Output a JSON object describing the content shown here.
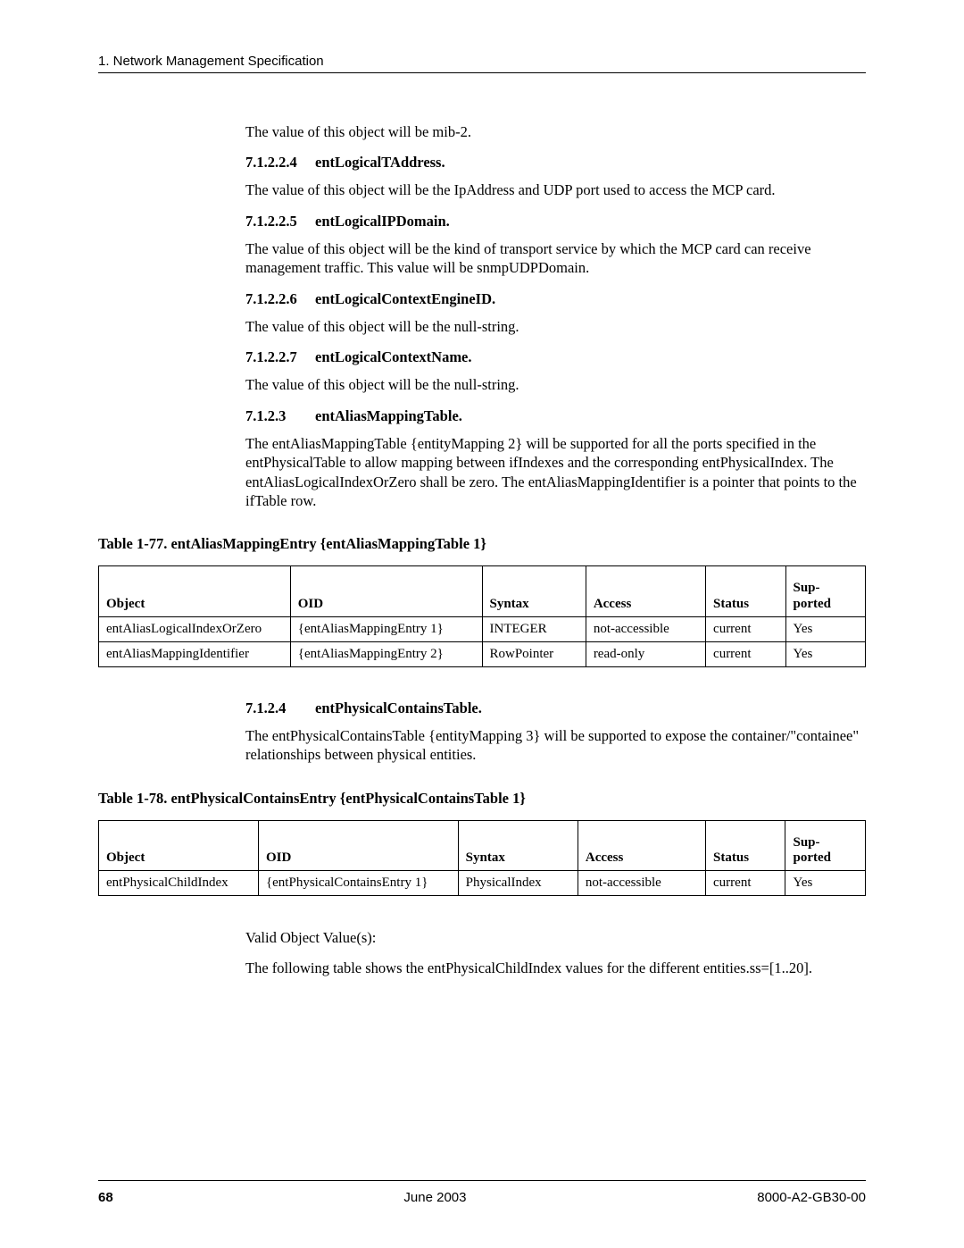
{
  "header": {
    "text": "1. Network Management Specification"
  },
  "sections": {
    "intro_para": "The value of this object will be mib-2.",
    "s71224": {
      "num": "7.1.2.2.4",
      "title": "entLogicalTAddress.",
      "para": "The value of this object will be the IpAddress and UDP port used to access the MCP card."
    },
    "s71225": {
      "num": "7.1.2.2.5",
      "title": "entLogicalIPDomain.",
      "para": "The value of this object will be the kind of transport service by which the MCP card can receive management traffic. This value will be snmpUDPDomain."
    },
    "s71226": {
      "num": "7.1.2.2.6",
      "title": "entLogicalContextEngineID.",
      "para": "The value of this object will be the null-string."
    },
    "s71227": {
      "num": "7.1.2.2.7",
      "title": "entLogicalContextName.",
      "para": "The value of this object will be the null-string."
    },
    "s7123": {
      "num": "7.1.2.3",
      "title": "entAliasMappingTable.",
      "para": "The entAliasMappingTable {entityMapping 2} will be supported for all the ports specified in the entPhysicalTable to allow mapping between ifIndexes and the corresponding entPhysicalIndex. The entAliasLogicalIndexOrZero shall be zero. The entAliasMappingIdentifier is a pointer that points to the ifTable row."
    },
    "s7124": {
      "num": "7.1.2.4",
      "title": "entPhysicalContainsTable.",
      "para": "The entPhysicalContainsTable {entityMapping 3} will be supported to expose the container/\"containee\" relationships between physical entities."
    },
    "valid_label": "Valid Object Value(s):",
    "valid_para": "The following table shows the entPhysicalChildIndex values for the different entities.ss=[1..20]."
  },
  "table77": {
    "caption": "Table 1-77.   entAliasMappingEntry {entAliasMappingTable 1}",
    "headers": {
      "object": "Object",
      "oid": "OID",
      "syntax": "Syntax",
      "access": "Access",
      "status": "Status",
      "sup1": "Sup-",
      "sup2": "ported"
    },
    "col_widths": [
      "24%",
      "24%",
      "13%",
      "15%",
      "10%",
      "10%"
    ],
    "rows": [
      {
        "object": "entAliasLogicalIndexOrZero",
        "oid": "{entAliasMappingEntry 1}",
        "syntax": "INTEGER",
        "access": "not-accessible",
        "status": "current",
        "supported": "Yes"
      },
      {
        "object": "entAliasMappingIdentifier",
        "oid": "{entAliasMappingEntry 2}",
        "syntax": "RowPointer",
        "access": "read-only",
        "status": "current",
        "supported": "Yes"
      }
    ]
  },
  "table78": {
    "caption": "Table 1-78.   entPhysicalContainsEntry {entPhysicalContainsTable 1}",
    "headers": {
      "object": "Object",
      "oid": "OID",
      "syntax": "Syntax",
      "access": "Access",
      "status": "Status",
      "sup1": "Sup-",
      "sup2": "ported"
    },
    "col_widths": [
      "20%",
      "25%",
      "15%",
      "16%",
      "10%",
      "10%"
    ],
    "rows": [
      {
        "object": "entPhysicalChildIndex",
        "oid": "{entPhysicalContainsEntry 1}",
        "syntax": "PhysicalIndex",
        "access": "not-accessible",
        "status": "current",
        "supported": "Yes"
      }
    ]
  },
  "footer": {
    "page": "68",
    "center": "June 2003",
    "right": "8000-A2-GB30-00"
  }
}
